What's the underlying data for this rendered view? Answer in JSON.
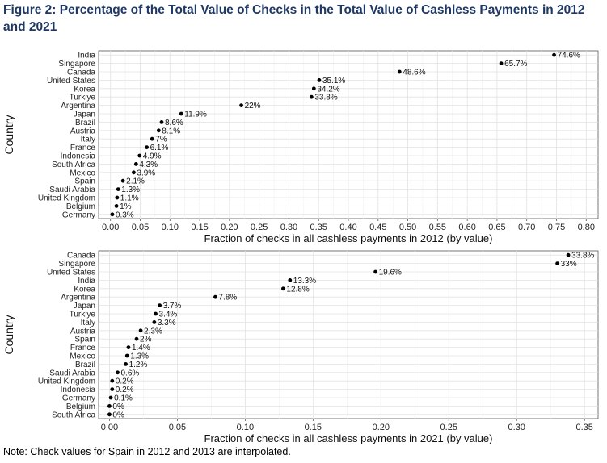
{
  "figure": {
    "title": "Figure 2: Percentage of the Total Value of Checks in the Total Value of Cashless Payments in 2012 and 2021",
    "note": "Note: Check values for Spain in 2012 and 2013 are interpolated."
  },
  "chart_data": [
    {
      "type": "scatter",
      "title": "",
      "xlabel": "Fraction of checks in all cashless payments in 2012 (by value)",
      "ylabel": "Country",
      "xlim": [
        -0.02,
        0.82
      ],
      "xticks": [
        "0.00",
        "0.05",
        "0.10",
        "0.15",
        "0.20",
        "0.25",
        "0.30",
        "0.35",
        "0.40",
        "0.45",
        "0.50",
        "0.55",
        "0.60",
        "0.65",
        "0.70",
        "0.75",
        "0.80"
      ],
      "grid": true,
      "categories": [
        "India",
        "Singapore",
        "Canada",
        "United States",
        "Korea",
        "Turkiye",
        "Argentina",
        "Japan",
        "Brazil",
        "Austria",
        "Italy",
        "France",
        "Indonesia",
        "South Africa",
        "Mexico",
        "Spain",
        "Saudi Arabia",
        "United Kingdom",
        "Belgium",
        "Germany"
      ],
      "values": [
        0.746,
        0.657,
        0.486,
        0.351,
        0.342,
        0.338,
        0.22,
        0.119,
        0.086,
        0.081,
        0.07,
        0.061,
        0.049,
        0.043,
        0.039,
        0.021,
        0.013,
        0.011,
        0.01,
        0.003
      ],
      "labels": [
        "74.6%",
        "65.7%",
        "48.6%",
        "35.1%",
        "34.2%",
        "33.8%",
        "22%",
        "11.9%",
        "8.6%",
        "8.1%",
        "7%",
        "6.1%",
        "4.9%",
        "4.3%",
        "3.9%",
        "2.1%",
        "1.3%",
        "1.1%",
        "1%",
        "0.3%"
      ]
    },
    {
      "type": "scatter",
      "title": "",
      "xlabel": "Fraction of checks in all cashless payments in 2021 (by value)",
      "ylabel": "Country",
      "xlim": [
        -0.008,
        0.36
      ],
      "xticks": [
        "0.00",
        "0.05",
        "0.10",
        "0.15",
        "0.20",
        "0.25",
        "0.30",
        "0.35"
      ],
      "grid": true,
      "categories": [
        "Canada",
        "Singapore",
        "United States",
        "India",
        "Korea",
        "Argentina",
        "Japan",
        "Turkiye",
        "Italy",
        "Austria",
        "Spain",
        "France",
        "Mexico",
        "Brazil",
        "Saudi Arabia",
        "United Kingdom",
        "Indonesia",
        "Germany",
        "Belgium",
        "South Africa"
      ],
      "values": [
        0.338,
        0.33,
        0.196,
        0.133,
        0.128,
        0.078,
        0.037,
        0.034,
        0.033,
        0.023,
        0.02,
        0.014,
        0.013,
        0.012,
        0.006,
        0.002,
        0.002,
        0.001,
        0.0,
        0.0
      ],
      "labels": [
        "33.8%",
        "33%",
        "19.6%",
        "13.3%",
        "12.8%",
        "7.8%",
        "3.7%",
        "3.4%",
        "3.3%",
        "2.3%",
        "2%",
        "1.4%",
        "1.3%",
        "1.2%",
        "0.6%",
        "0.2%",
        "0.2%",
        "0.1%",
        "0%",
        "0%"
      ]
    }
  ]
}
